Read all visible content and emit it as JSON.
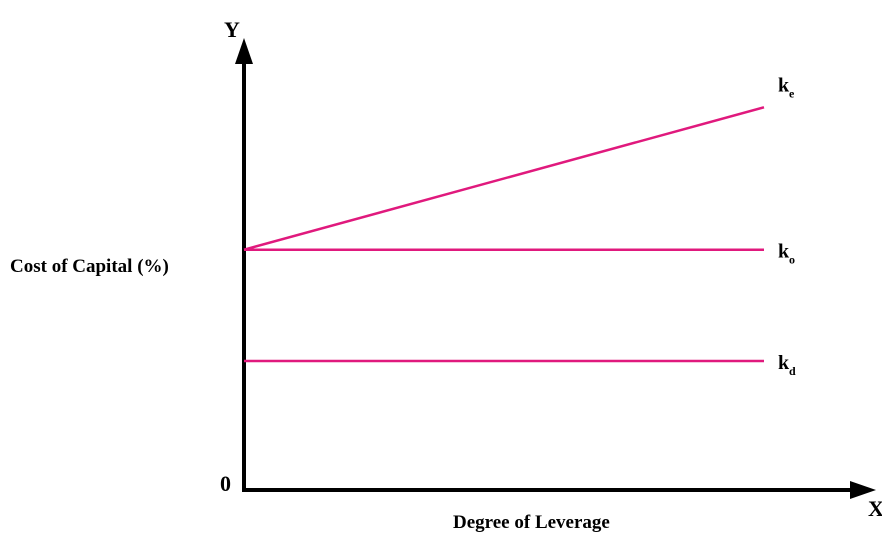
{
  "chart_data": {
    "type": "line",
    "title": "",
    "xlabel": "Degree of Leverage",
    "ylabel": "Cost of Capital (%)",
    "x_axis_letter": "X",
    "y_axis_letter": "Y",
    "origin_label": "0",
    "xlim": [
      0,
      10
    ],
    "ylim": [
      0,
      10
    ],
    "grid": false,
    "line_color": "#e0197d",
    "series": [
      {
        "name": "k",
        "subscript": "e",
        "x": [
          0,
          10
        ],
        "y": [
          5.4,
          8.6
        ]
      },
      {
        "name": "k",
        "subscript": "o",
        "x": [
          0,
          10
        ],
        "y": [
          5.4,
          5.4
        ]
      },
      {
        "name": "k",
        "subscript": "d",
        "x": [
          0,
          10
        ],
        "y": [
          2.9,
          2.9
        ]
      }
    ]
  }
}
